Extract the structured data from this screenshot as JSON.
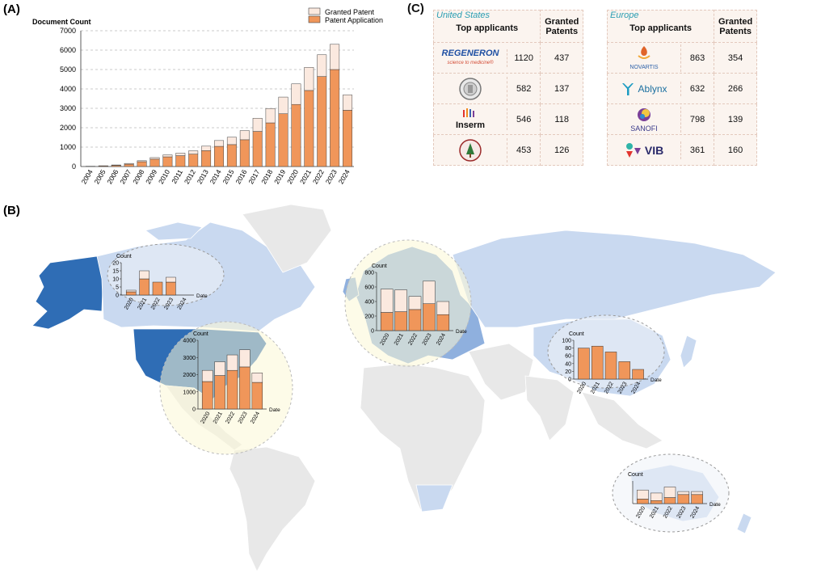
{
  "panels": {
    "a": "(A)",
    "b": "(B)",
    "c": "(C)"
  },
  "colors": {
    "granted": "#fbe9df",
    "application": "#f0965a",
    "bar_stroke": "#444444",
    "map_land": "#e8e8e8",
    "map_light_blue": "#c9d9f0",
    "map_mid_blue": "#8fb0de",
    "map_dark_blue": "#2f6db5",
    "bubble_fill": "#fbf8d6"
  },
  "chart_data": [
    {
      "id": "panel-a",
      "type": "bar",
      "stacked": true,
      "title": "",
      "xlabel": "",
      "ylabel": "Document Count",
      "ylim": [
        0,
        7000
      ],
      "yticks": [
        "0",
        "1000",
        "2000",
        "3000",
        "4000",
        "5000",
        "6000",
        "7000"
      ],
      "grid": "horizontal dashed",
      "legend_position": "top-right",
      "categories": [
        "2004",
        "2005",
        "2006",
        "2007",
        "2008",
        "2009",
        "2010",
        "2011",
        "2012",
        "2013",
        "2014",
        "2015",
        "2016",
        "2017",
        "2018",
        "2019",
        "2020",
        "2021",
        "2022",
        "2023",
        "2024"
      ],
      "series": [
        {
          "name": "Patent Application",
          "values": [
            10,
            30,
            60,
            120,
            250,
            380,
            500,
            560,
            640,
            820,
            1040,
            1130,
            1380,
            1810,
            2250,
            2720,
            3200,
            3920,
            4640,
            5000,
            2900
          ]
        },
        {
          "name": "Granted Patent",
          "values": [
            5,
            10,
            20,
            40,
            50,
            80,
            100,
            130,
            170,
            230,
            300,
            380,
            470,
            680,
            740,
            860,
            1060,
            1190,
            1120,
            1300,
            790
          ]
        }
      ]
    },
    {
      "id": "inset-canada",
      "type": "bar",
      "stacked": true,
      "ylabel": "Count",
      "xlabel": "Date",
      "categories": [
        "2020",
        "2021",
        "2022",
        "2023",
        "2024"
      ],
      "ylim": [
        0,
        20
      ],
      "yticks": [
        "0",
        "5",
        "10",
        "15",
        "20"
      ],
      "series": [
        {
          "name": "Patent Application",
          "values": [
            2,
            10,
            8,
            8,
            0
          ]
        },
        {
          "name": "Granted Patent",
          "values": [
            1,
            5,
            0,
            3,
            0
          ]
        }
      ]
    },
    {
      "id": "inset-usa",
      "type": "bar",
      "stacked": true,
      "ylabel": "Count",
      "xlabel": "Date",
      "categories": [
        "2020",
        "2021",
        "2022",
        "2023",
        "2024"
      ],
      "ylim": [
        0,
        4000
      ],
      "yticks": [
        "0",
        "1000",
        "2000",
        "3000",
        "4000"
      ],
      "series": [
        {
          "name": "Patent Application",
          "values": [
            1600,
            1950,
            2250,
            2450,
            1550
          ]
        },
        {
          "name": "Granted Patent",
          "values": [
            650,
            800,
            900,
            1000,
            550
          ]
        }
      ]
    },
    {
      "id": "inset-europe",
      "type": "bar",
      "stacked": true,
      "ylabel": "Count",
      "xlabel": "Date",
      "categories": [
        "2020",
        "2021",
        "2022",
        "2023",
        "2024"
      ],
      "ylim": [
        0,
        800
      ],
      "yticks": [
        "0",
        "200",
        "400",
        "600",
        "800"
      ],
      "series": [
        {
          "name": "Patent Application",
          "values": [
            250,
            260,
            290,
            370,
            220
          ]
        },
        {
          "name": "Granted Patent",
          "values": [
            320,
            300,
            180,
            310,
            180
          ]
        }
      ]
    },
    {
      "id": "inset-china",
      "type": "bar",
      "stacked": true,
      "ylabel": "Count",
      "xlabel": "Date",
      "categories": [
        "2020",
        "2021",
        "2022",
        "2023",
        "2024"
      ],
      "ylim": [
        0,
        100
      ],
      "yticks": [
        "0",
        "20",
        "40",
        "60",
        "80",
        "100"
      ],
      "series": [
        {
          "name": "Patent Application",
          "values": [
            80,
            85,
            70,
            45,
            25
          ]
        },
        {
          "name": "Granted Patent",
          "values": [
            0,
            0,
            0,
            0,
            0
          ]
        }
      ]
    },
    {
      "id": "inset-australia",
      "type": "bar",
      "stacked": true,
      "ylabel": "Count",
      "xlabel": "Date",
      "categories": [
        "2020",
        "2021",
        "2022",
        "2023",
        "2024"
      ],
      "ylim": [
        0,
        15
      ],
      "yticks": [],
      "series": [
        {
          "name": "Patent Application",
          "values": [
            3,
            2,
            4,
            6,
            6
          ]
        },
        {
          "name": "Granted Patent",
          "values": [
            6,
            5,
            7,
            2,
            2
          ]
        }
      ]
    }
  ],
  "table_c": {
    "header_applicants": "Top applicants",
    "header_granted": "Granted Patents",
    "us": {
      "region": "United States",
      "rows": [
        {
          "logo": "REGENERON",
          "logo_sub": "science to medicine®",
          "applications": "1120",
          "granted": "437"
        },
        {
          "logo": "",
          "applications": "582",
          "granted": "137"
        },
        {
          "logo": "Inserm",
          "applications": "546",
          "granted": "118"
        },
        {
          "logo": "",
          "applications": "453",
          "granted": "126"
        }
      ]
    },
    "eu": {
      "region": "Europe",
      "rows": [
        {
          "logo": "NOVARTIS",
          "applications": "863",
          "granted": "354"
        },
        {
          "logo": "Ablynx",
          "applications": "632",
          "granted": "266"
        },
        {
          "logo": "SANOFI",
          "applications": "798",
          "granted": "139"
        },
        {
          "logo": "VIB",
          "applications": "361",
          "granted": "160"
        }
      ]
    }
  }
}
